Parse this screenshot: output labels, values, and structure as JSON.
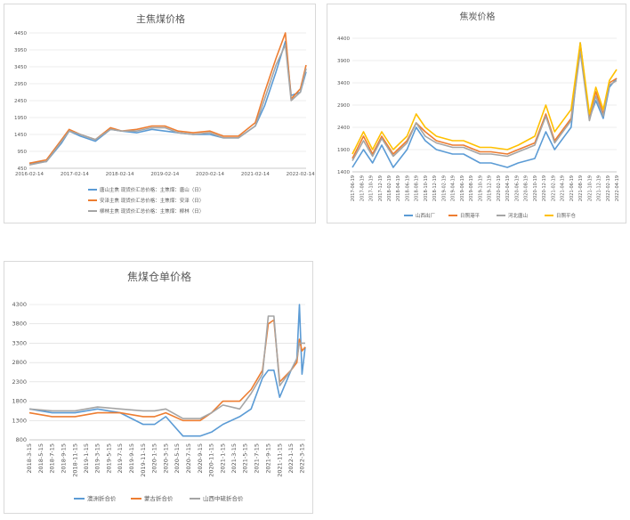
{
  "colors": {
    "blue": "#5b9bd5",
    "orange": "#ed7d31",
    "gray": "#a5a5a5",
    "yellow": "#ffc000",
    "grid": "#d9d9d9"
  },
  "chart_data": [
    {
      "type": "line",
      "title": "主焦煤价格",
      "yticks": [
        "450",
        "950",
        "1450",
        "1950",
        "2450",
        "2950",
        "3450",
        "3950",
        "4450"
      ],
      "ylim": [
        450,
        4450
      ],
      "xticks": [
        "2016-02-14",
        "2017-02-14",
        "2018-02-14",
        "2019-02-14",
        "2020-02-14",
        "2021-02-14",
        "2022-02-14"
      ],
      "x": [
        "2016-02-14",
        "2016-07-01",
        "2016-11-01",
        "2017-01-01",
        "2017-04-01",
        "2017-08-01",
        "2017-12-01",
        "2018-03-01",
        "2018-07-01",
        "2018-11-01",
        "2019-02-14",
        "2019-06-01",
        "2019-10-01",
        "2020-02-14",
        "2020-06-01",
        "2020-10-01",
        "2021-02-14",
        "2021-05-01",
        "2021-08-01",
        "2021-10-15",
        "2021-12-01",
        "2022-02-14",
        "2022-04-01"
      ],
      "series": [
        {
          "name": "唐山主焦 现货价汇总价格：主焦煤：唐山（日）",
          "color": "#5b9bd5",
          "values": [
            600,
            650,
            1200,
            1550,
            1400,
            1250,
            1600,
            1550,
            1500,
            1600,
            1550,
            1500,
            1450,
            1450,
            1350,
            1350,
            1700,
            2300,
            3300,
            4200,
            2600,
            2700,
            3300
          ]
        },
        {
          "name": "安泽主焦 现货价汇总价格：主焦煤：安泽（日）",
          "color": "#ed7d31",
          "values": [
            600,
            700,
            1300,
            1600,
            1450,
            1300,
            1650,
            1550,
            1600,
            1700,
            1700,
            1550,
            1500,
            1550,
            1400,
            1400,
            1800,
            2700,
            3700,
            4450,
            2500,
            2800,
            3500
          ]
        },
        {
          "name": "柳林主焦 现货价汇总价格：主焦煤：柳林（日）",
          "color": "#a5a5a5",
          "values": [
            550,
            650,
            1250,
            1550,
            1450,
            1300,
            1600,
            1550,
            1550,
            1650,
            1650,
            1500,
            1450,
            1500,
            1350,
            1350,
            1700,
            2500,
            3500,
            4100,
            2450,
            2700,
            3400
          ]
        }
      ]
    },
    {
      "type": "line",
      "title": "焦炭价格",
      "yticks": [
        "1400",
        "1900",
        "2400",
        "2900",
        "3400",
        "3900",
        "4400"
      ],
      "ylim": [
        1400,
        4400
      ],
      "xticks": [
        "2017-06-19",
        "2017-08-19",
        "2017-10-19",
        "2017-12-19",
        "2018-02-19",
        "2018-04-19",
        "2018-06-19",
        "2018-08-19",
        "2018-10-19",
        "2018-12-19",
        "2019-02-19",
        "2019-04-19",
        "2019-06-19",
        "2019-08-19",
        "2019-10-19",
        "2019-12-19",
        "2020-02-19",
        "2020-04-19",
        "2020-06-19",
        "2020-08-19",
        "2020-10-19",
        "2020-12-19",
        "2021-02-19",
        "2021-04-19",
        "2021-06-19",
        "2021-08-19",
        "2021-10-19",
        "2021-12-19",
        "2022-02-19",
        "2022-04-19"
      ],
      "x": [
        "2017-06-19",
        "2017-09-01",
        "2017-11-01",
        "2018-01-01",
        "2018-03-19",
        "2018-06-19",
        "2018-08-19",
        "2018-10-19",
        "2019-01-01",
        "2019-04-19",
        "2019-07-01",
        "2019-10-19",
        "2020-01-01",
        "2020-04-19",
        "2020-07-01",
        "2020-10-19",
        "2021-01-01",
        "2021-03-01",
        "2021-06-19",
        "2021-08-19",
        "2021-10-19",
        "2021-12-01",
        "2022-01-19",
        "2022-03-01",
        "2022-04-19"
      ],
      "series": [
        {
          "name": "山西出厂",
          "color": "#5b9bd5",
          "values": [
            1500,
            1900,
            1600,
            2000,
            1500,
            1900,
            2400,
            2100,
            1900,
            1800,
            1800,
            1600,
            1600,
            1500,
            1600,
            1700,
            2300,
            1900,
            2400,
            4300,
            2600,
            3000,
            2600,
            3300,
            3500
          ]
        },
        {
          "name": "日照港平",
          "color": "#ed7d31",
          "values": [
            1700,
            2200,
            1800,
            2200,
            1800,
            2100,
            2500,
            2300,
            2100,
            2000,
            2000,
            1850,
            1850,
            1800,
            1900,
            2050,
            2700,
            2100,
            2600,
            4150,
            2600,
            3200,
            2700,
            3400,
            3500
          ]
        },
        {
          "name": "河北唐山",
          "color": "#a5a5a5",
          "values": [
            1650,
            2100,
            1750,
            2150,
            1750,
            2050,
            2500,
            2200,
            2050,
            1950,
            1950,
            1800,
            1800,
            1750,
            1850,
            2000,
            2650,
            2050,
            2550,
            4100,
            2550,
            3100,
            2650,
            3350,
            3450
          ]
        },
        {
          "name": "日照平仓",
          "color": "#ffc000",
          "values": [
            1800,
            2300,
            1900,
            2300,
            1900,
            2200,
            2700,
            2400,
            2200,
            2100,
            2100,
            1950,
            1950,
            1900,
            2000,
            2200,
            2900,
            2300,
            2800,
            4300,
            2700,
            3300,
            2800,
            3450,
            3700
          ]
        }
      ]
    },
    {
      "type": "line",
      "title": "焦煤仓单价格",
      "yticks": [
        "800",
        "1300",
        "1800",
        "2300",
        "2800",
        "3300",
        "3800",
        "4300"
      ],
      "ylim": [
        800,
        4300
      ],
      "xticks": [
        "2018-3-15",
        "2018-5-15",
        "2018-7-15",
        "2018-9-15",
        "2018-11-15",
        "2019-1-15",
        "2019-3-15",
        "2019-5-15",
        "2019-7-15",
        "2019-9-15",
        "2019-11-15",
        "2020-1-15",
        "2020-3-15",
        "2020-5-15",
        "2020-7-15",
        "2020-9-15",
        "2020-11-15",
        "2021-1-15",
        "2021-3-15",
        "2021-5-15",
        "2021-7-15",
        "2021-9-15",
        "2021-11-15",
        "2022-1-15",
        "2022-3-15"
      ],
      "x": [
        "2018-03-15",
        "2018-07-15",
        "2018-11-15",
        "2019-03-15",
        "2019-07-15",
        "2019-11-15",
        "2020-01-15",
        "2020-03-15",
        "2020-06-15",
        "2020-09-15",
        "2020-11-15",
        "2021-01-15",
        "2021-04-15",
        "2021-06-15",
        "2021-08-15",
        "2021-09-15",
        "2021-10-15",
        "2021-11-15",
        "2022-01-15",
        "2022-02-15",
        "2022-03-01",
        "2022-03-15",
        "2022-04-01"
      ],
      "series": [
        {
          "name": "澳洲折合价",
          "color": "#5b9bd5",
          "values": [
            1600,
            1500,
            1500,
            1600,
            1500,
            1200,
            1200,
            1400,
            900,
            900,
            1000,
            1200,
            1400,
            1600,
            2400,
            2600,
            2600,
            1900,
            2600,
            2900,
            4300,
            2500,
            3200
          ]
        },
        {
          "name": "蒙古折合价",
          "color": "#ed7d31",
          "values": [
            1500,
            1400,
            1400,
            1500,
            1500,
            1400,
            1400,
            1500,
            1300,
            1300,
            1500,
            1800,
            1800,
            2100,
            2600,
            3800,
            3900,
            2300,
            2600,
            2800,
            3400,
            3100,
            3200
          ]
        },
        {
          "name": "山西中硫折合价",
          "color": "#a5a5a5",
          "values": [
            1600,
            1550,
            1550,
            1650,
            1600,
            1550,
            1550,
            1600,
            1350,
            1350,
            1500,
            1700,
            1600,
            2000,
            2500,
            4000,
            4000,
            2200,
            2600,
            2900,
            3300,
            3300,
            3300
          ]
        }
      ]
    }
  ]
}
